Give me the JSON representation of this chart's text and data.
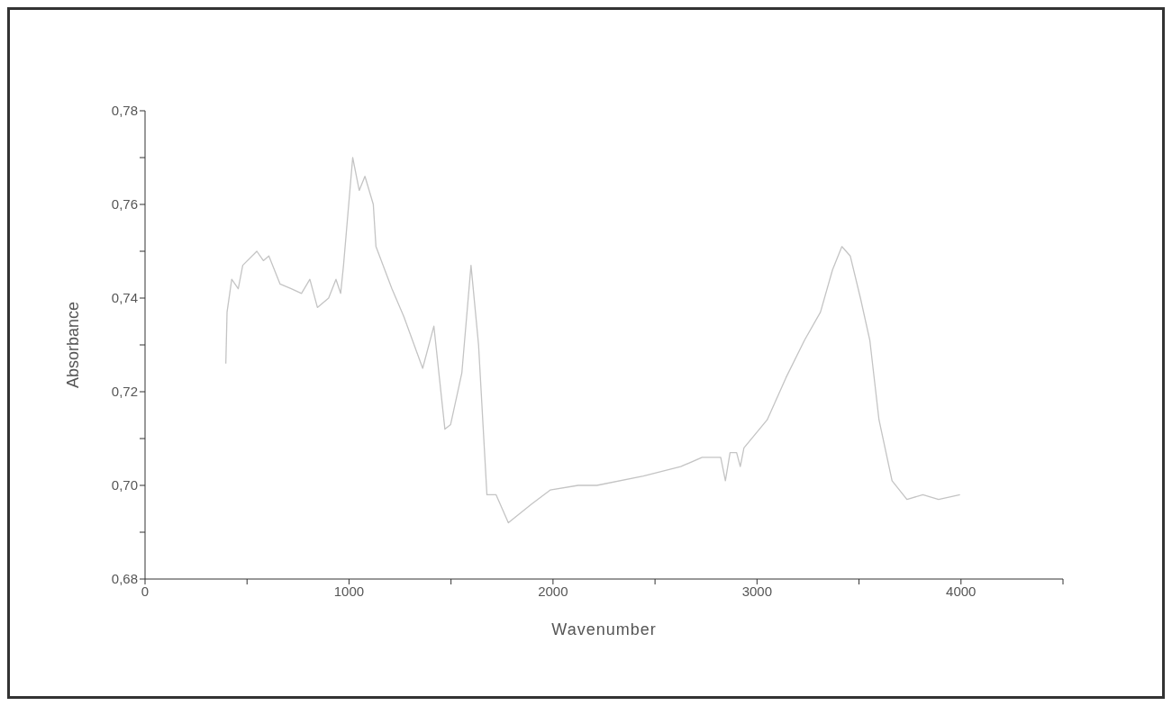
{
  "chart_data": {
    "type": "line",
    "xlabel": "Wavenumber",
    "ylabel": "Absorbance",
    "x": [
      396,
      402,
      425,
      457,
      479,
      548,
      580,
      607,
      662,
      717,
      767,
      808,
      845,
      900,
      936,
      959,
      973,
      1018,
      1050,
      1078,
      1119,
      1132,
      1210,
      1269,
      1361,
      1416,
      1470,
      1498,
      1553,
      1598,
      1635,
      1676,
      1721,
      1781,
      1895,
      1986,
      2123,
      2215,
      2443,
      2626,
      2731,
      2822,
      2845,
      2868,
      2900,
      2918,
      2936,
      3050,
      3142,
      3233,
      3311,
      3370,
      3416,
      3457,
      3507,
      3553,
      3598,
      3662,
      3735,
      3813,
      3890,
      3995
    ],
    "series": [
      {
        "color": "#c4c4c4",
        "values": [
          0.726,
          0.737,
          0.744,
          0.742,
          0.747,
          0.75,
          0.748,
          0.749,
          0.743,
          0.742,
          0.741,
          0.744,
          0.738,
          0.74,
          0.744,
          0.741,
          0.747,
          0.77,
          0.763,
          0.766,
          0.76,
          0.751,
          0.742,
          0.736,
          0.725,
          0.734,
          0.712,
          0.713,
          0.724,
          0.747,
          0.73,
          0.698,
          0.698,
          0.692,
          0.696,
          0.699,
          0.7,
          0.7,
          0.702,
          0.704,
          0.706,
          0.706,
          0.701,
          0.707,
          0.707,
          0.704,
          0.708,
          0.714,
          0.723,
          0.731,
          0.737,
          0.746,
          0.751,
          0.749,
          0.74,
          0.731,
          0.714,
          0.701,
          0.697,
          0.698,
          0.697,
          0.698
        ]
      }
    ],
    "xlim": [
      0,
      4500
    ],
    "xticks": [
      0,
      {
        "value": 500,
        "label": null
      },
      1000,
      {
        "value": 1500,
        "label": null
      },
      2000,
      {
        "value": 2500,
        "label": null
      },
      3000,
      {
        "value": 3500,
        "label": null
      },
      4000,
      {
        "value": 4500,
        "label": null
      }
    ],
    "ylim": [
      0.68,
      0.78
    ],
    "yticks": [
      {
        "value": 0.68,
        "label": "0,68"
      },
      {
        "value": 0.69,
        "label": null
      },
      {
        "value": 0.7,
        "label": "0,70"
      },
      {
        "value": 0.71,
        "label": null
      },
      {
        "value": 0.72,
        "label": "0,72"
      },
      {
        "value": 0.73,
        "label": null
      },
      {
        "value": 0.74,
        "label": "0,74"
      },
      {
        "value": 0.75,
        "label": null
      },
      {
        "value": 0.76,
        "label": "0,76"
      },
      {
        "value": 0.77,
        "label": null
      },
      {
        "value": 0.78,
        "label": "0,78"
      }
    ],
    "grid": false,
    "legend": false,
    "marker": "none",
    "line_style": "solid"
  }
}
